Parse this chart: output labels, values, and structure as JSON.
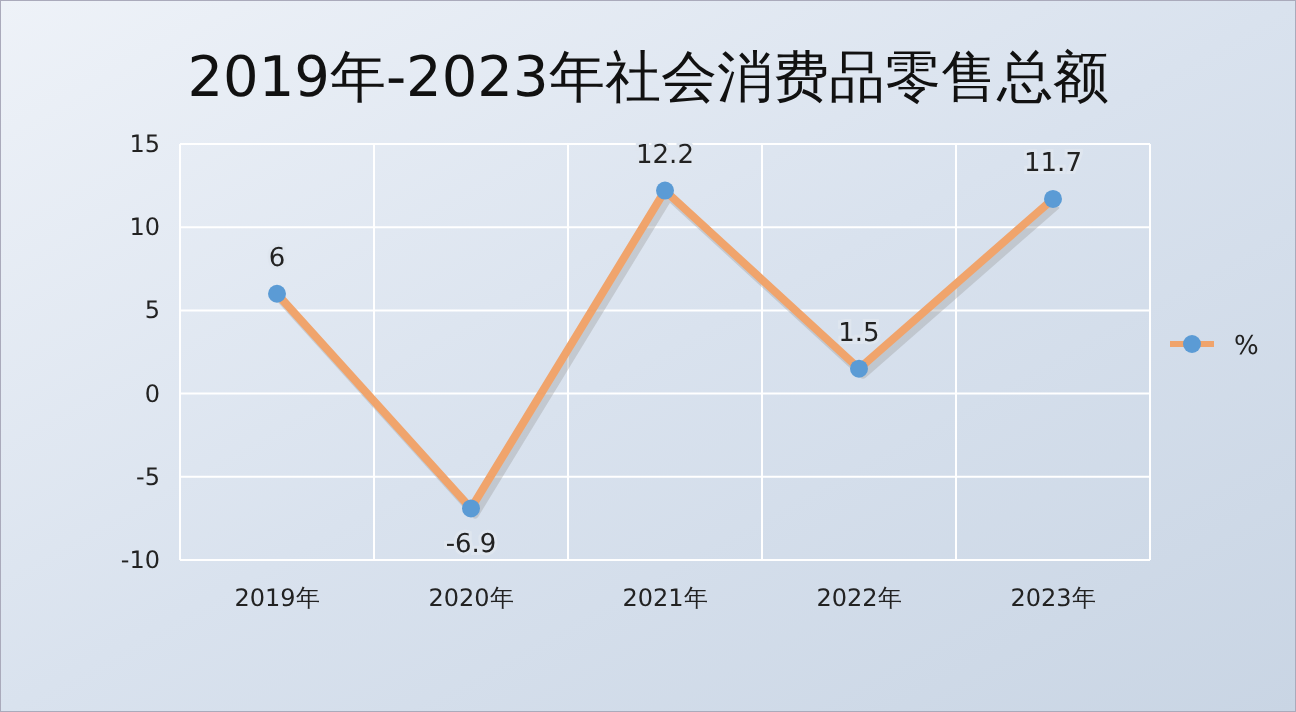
{
  "chart_data": {
    "type": "line",
    "title": "2019年-2023年社会消费品零售总额",
    "categories": [
      "2019年",
      "2020年",
      "2021年",
      "2022年",
      "2023年"
    ],
    "series": [
      {
        "name": "%",
        "color": "#f0a46c",
        "values": [
          6,
          -6.9,
          12.2,
          1.5,
          11.7
        ]
      }
    ],
    "ylim": [
      -10,
      15
    ],
    "yticks": [
      -10,
      -5,
      0,
      5,
      10,
      15
    ],
    "grid": true,
    "legend": "right",
    "marker": "circle",
    "data_labels": true
  }
}
